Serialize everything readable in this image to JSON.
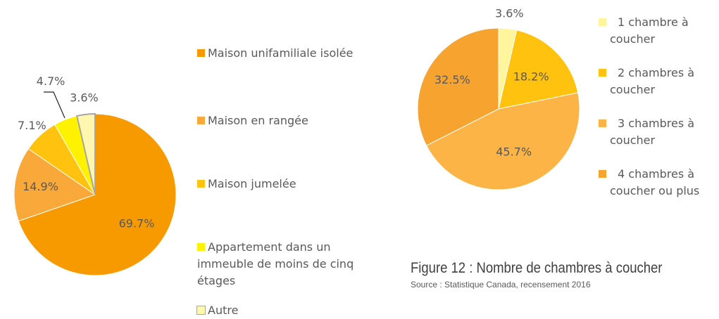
{
  "chart_data": [
    {
      "type": "pie",
      "categories": [
        "Maison unifamiliale isolée",
        "Maison en rangée",
        "Maison jumelée",
        "Appartement dans un immeuble de moins de cinq étages",
        "Autre"
      ],
      "values": [
        69.7,
        14.9,
        7.1,
        4.7,
        3.6
      ],
      "value_labels": [
        "69.7%",
        "14.9%",
        "7.1%",
        "4.7%",
        "3.6%"
      ],
      "colors": [
        "#f79a00",
        "#f9a93a",
        "#ffc20e",
        "#fff200",
        "#fff6b0"
      ]
    },
    {
      "type": "pie",
      "categories": [
        "1 chambre à coucher",
        "2 chambres à coucher",
        "3 chambres à coucher",
        "4 chambres à coucher ou plus"
      ],
      "values": [
        3.6,
        18.2,
        45.7,
        32.5
      ],
      "value_labels": [
        "3.6%",
        "18.2%",
        "45.7%",
        "32.5%"
      ],
      "colors": [
        "#fff59d",
        "#ffc20e",
        "#fbb445",
        "#f7a330"
      ]
    }
  ],
  "caption": "Figure 12 : Nombre de chambres à coucher",
  "source": "Source : Statistique Canada, recensement 2016"
}
